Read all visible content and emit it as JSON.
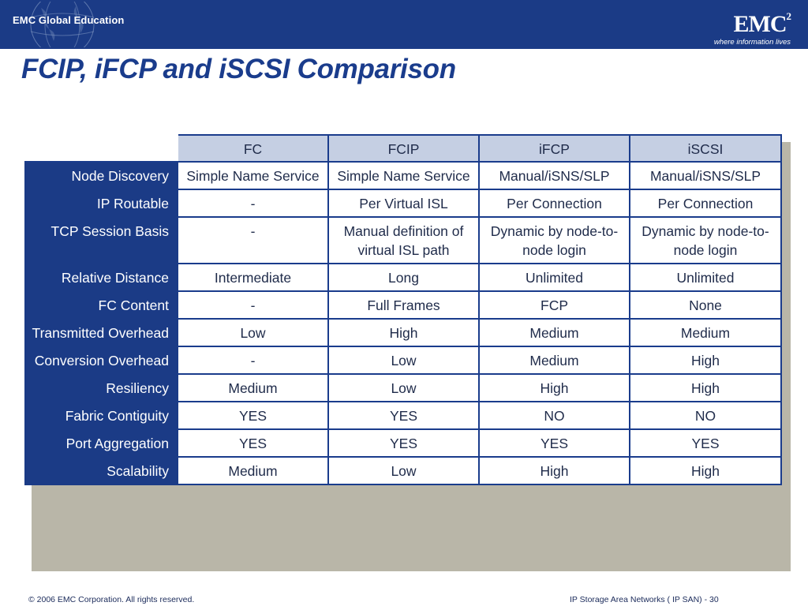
{
  "header": {
    "left_logo_text": "EMC Global Education",
    "right_logo_text": "EMC",
    "right_logo_superscript": "2",
    "right_logo_tagline": "where information lives",
    "bar_color": "#1b3b86"
  },
  "slide_title": "FCIP, iFCP and iSCSI Comparison",
  "table": {
    "columns": [
      "FC",
      "FCIP",
      "iFCP",
      "iSCSI"
    ],
    "rows": [
      {
        "label": "Node Discovery",
        "cells": [
          "Simple Name Service",
          "Simple Name Service",
          "Manual/iSNS/SLP",
          "Manual/iSNS/SLP"
        ]
      },
      {
        "label": "IP Routable",
        "cells": [
          "-",
          "Per Virtual ISL",
          "Per Connection",
          "Per Connection"
        ]
      },
      {
        "label": "TCP Session Basis",
        "cells": [
          "-",
          "Manual definition of virtual ISL path",
          "Dynamic by node-to-node login",
          "Dynamic by node-to-node login"
        ]
      },
      {
        "label": "Relative Distance",
        "cells": [
          "Intermediate",
          "Long",
          "Unlimited",
          "Unlimited"
        ]
      },
      {
        "label": "FC Content",
        "cells": [
          "-",
          "Full Frames",
          "FCP",
          "None"
        ]
      },
      {
        "label": "Transmitted Overhead",
        "cells": [
          "Low",
          "High",
          "Medium",
          "Medium"
        ]
      },
      {
        "label": "Conversion Overhead",
        "cells": [
          "-",
          "Low",
          "Medium",
          "High"
        ]
      },
      {
        "label": "Resiliency",
        "cells": [
          "Medium",
          "Low",
          "High",
          "High"
        ]
      },
      {
        "label": "Fabric Contiguity",
        "cells": [
          "YES",
          "YES",
          "NO",
          "NO"
        ]
      },
      {
        "label": "Port Aggregation",
        "cells": [
          "YES",
          "YES",
          "YES",
          "YES"
        ]
      },
      {
        "label": "Scalability",
        "cells": [
          "Medium",
          "Low",
          "High",
          "High"
        ]
      }
    ]
  },
  "footer": {
    "copyright": "© 2006 EMC Corporation. All rights reserved.",
    "course": "IP Storage Area Networks ( IP SAN)",
    "page_number": "- 30"
  }
}
